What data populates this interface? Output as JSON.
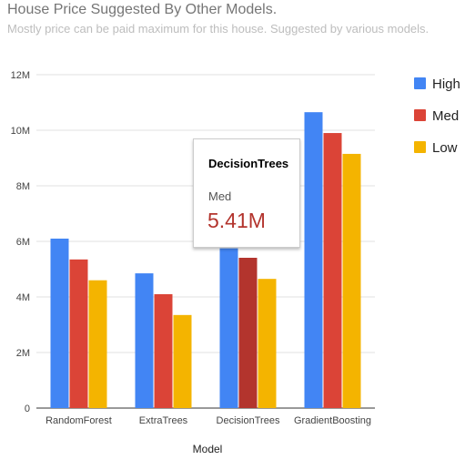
{
  "header": {
    "title": "House Price Suggested By Other Models.",
    "subtitle": "Mostly price can be paid maximum for this house. Suggested by various models."
  },
  "tooltip": {
    "category": "DecisionTrees",
    "series": "Med",
    "value": "5.41M"
  },
  "chart_data": {
    "type": "bar",
    "title": "House Price Suggested By Other Models.",
    "subtitle": "Mostly price can be paid maximum for this house. Suggested by various models.",
    "xlabel": "Model",
    "ylabel": "",
    "ylim": [
      0,
      12000000
    ],
    "yticks": [
      0,
      2000000,
      4000000,
      6000000,
      8000000,
      10000000,
      12000000
    ],
    "ytick_labels": [
      "0",
      "2M",
      "4M",
      "6M",
      "8M",
      "10M",
      "12M"
    ],
    "categories": [
      "RandomForest",
      "ExtraTrees",
      "DecisionTrees",
      "GradientBoosting"
    ],
    "series": [
      {
        "name": "High",
        "color": "#4285f4",
        "values": [
          6100000,
          4850000,
          5750000,
          10650000
        ]
      },
      {
        "name": "Med",
        "color": "#db4437",
        "values": [
          5350000,
          4100000,
          5410000,
          9900000
        ]
      },
      {
        "name": "Low",
        "color": "#f4b400",
        "values": [
          4600000,
          3350000,
          4650000,
          9150000
        ]
      }
    ],
    "grid": true,
    "legend_position": "right"
  }
}
